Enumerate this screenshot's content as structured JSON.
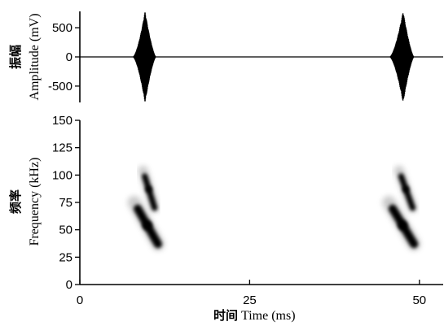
{
  "chart_data": [
    {
      "type": "line",
      "panel": "oscillogram",
      "ylabel_cn": "振幅",
      "ylabel": "Amplitude (mV)",
      "ylim": [
        -780,
        780
      ],
      "yticks": [
        500,
        0,
        -500
      ],
      "ytick_labels": [
        "500",
        "0",
        "-500"
      ],
      "xlim": [
        0,
        53.5
      ],
      "grid": false,
      "pulses": [
        {
          "x_start": 7.8,
          "x_peak": 9.6,
          "x_end": 11.2,
          "peak_mv": 780
        },
        {
          "x_start": 45.6,
          "x_peak": 47.6,
          "x_end": 49.2,
          "peak_mv": 780
        }
      ]
    },
    {
      "type": "heatmap",
      "panel": "spectrogram",
      "ylabel_cn": "频率",
      "ylabel": "Frequency (kHz)",
      "xlabel_cn": "时间",
      "xlabel": "Time (ms)",
      "xlim": [
        0,
        53.5
      ],
      "ylim": [
        0,
        150
      ],
      "xticks": [
        0,
        25,
        50
      ],
      "xtick_labels": [
        "0",
        "25",
        "50"
      ],
      "yticks": [
        150,
        125,
        100,
        75,
        50,
        25,
        0
      ],
      "ytick_labels": [
        "150",
        "125",
        "100",
        "75",
        "50",
        "25",
        "0"
      ],
      "grid": false,
      "sweeps": [
        {
          "harmonic": "fundamental",
          "t_start": 8.0,
          "t_end": 11.5,
          "f_start": 75,
          "f_end": 37
        },
        {
          "harmonic": "second",
          "t_start": 9.3,
          "t_end": 11.0,
          "f_start": 104,
          "f_end": 70
        },
        {
          "harmonic": "fundamental",
          "t_start": 45.5,
          "t_end": 49.2,
          "f_start": 75,
          "f_end": 37
        },
        {
          "harmonic": "second",
          "t_start": 47.0,
          "t_end": 49.0,
          "f_start": 104,
          "f_end": 70
        }
      ]
    }
  ]
}
